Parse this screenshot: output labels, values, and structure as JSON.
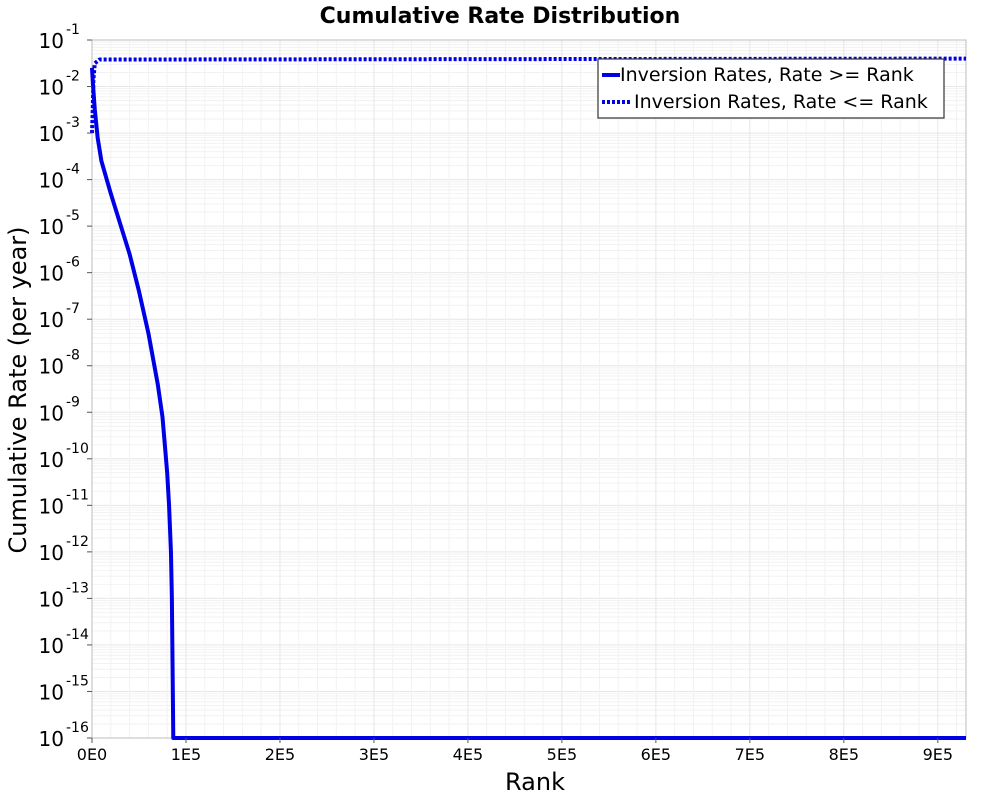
{
  "chart_data": {
    "type": "line",
    "title": "Cumulative Rate Distribution",
    "xlabel": "Rank",
    "ylabel": "Cumulative Rate (per year)",
    "xlim": [
      0,
      930000
    ],
    "ylim_log10": [
      -16,
      -1
    ],
    "y_scale": "log",
    "grid": true,
    "legend_position": "top-right",
    "x_ticks": [
      {
        "value": 0,
        "label": "0E0"
      },
      {
        "value": 100000,
        "label": "1E5"
      },
      {
        "value": 200000,
        "label": "2E5"
      },
      {
        "value": 300000,
        "label": "3E5"
      },
      {
        "value": 400000,
        "label": "4E5"
      },
      {
        "value": 500000,
        "label": "5E5"
      },
      {
        "value": 600000,
        "label": "6E5"
      },
      {
        "value": 700000,
        "label": "7E5"
      },
      {
        "value": 800000,
        "label": "8E5"
      },
      {
        "value": 900000,
        "label": "9E5"
      }
    ],
    "y_ticks": [
      {
        "exp": -1,
        "base": "10",
        "power": "-1"
      },
      {
        "exp": -2,
        "base": "10",
        "power": "-2"
      },
      {
        "exp": -3,
        "base": "10",
        "power": "-3"
      },
      {
        "exp": -4,
        "base": "10",
        "power": "-4"
      },
      {
        "exp": -5,
        "base": "10",
        "power": "-5"
      },
      {
        "exp": -6,
        "base": "10",
        "power": "-6"
      },
      {
        "exp": -7,
        "base": "10",
        "power": "-7"
      },
      {
        "exp": -8,
        "base": "10",
        "power": "-8"
      },
      {
        "exp": -9,
        "base": "10",
        "power": "-9"
      },
      {
        "exp": -10,
        "base": "10",
        "power": "-10"
      },
      {
        "exp": -11,
        "base": "10",
        "power": "-11"
      },
      {
        "exp": -12,
        "base": "10",
        "power": "-12"
      },
      {
        "exp": -13,
        "base": "10",
        "power": "-13"
      },
      {
        "exp": -14,
        "base": "10",
        "power": "-14"
      },
      {
        "exp": -15,
        "base": "10",
        "power": "-15"
      },
      {
        "exp": -16,
        "base": "10",
        "power": "-16"
      }
    ],
    "series": [
      {
        "name": "Inversion Rates, Rate >= Rank",
        "color": "#0000e6",
        "style": "solid",
        "points_log10": [
          [
            0,
            -1.6
          ],
          [
            1000,
            -1.95
          ],
          [
            3000,
            -2.5
          ],
          [
            6000,
            -3.1
          ],
          [
            10000,
            -3.6
          ],
          [
            15000,
            -3.95
          ],
          [
            20000,
            -4.3
          ],
          [
            30000,
            -4.95
          ],
          [
            40000,
            -5.6
          ],
          [
            50000,
            -6.4
          ],
          [
            60000,
            -7.3
          ],
          [
            70000,
            -8.4
          ],
          [
            75000,
            -9.1
          ],
          [
            80000,
            -10.3
          ],
          [
            82000,
            -11.0
          ],
          [
            84000,
            -12.0
          ],
          [
            85000,
            -13.0
          ],
          [
            86000,
            -15.0
          ],
          [
            86500,
            -16.0
          ],
          [
            930000,
            -16.0
          ]
        ]
      },
      {
        "name": "Inversion Rates, Rate <= Rank",
        "color": "#0000e6",
        "style": "dotted",
        "points_log10": [
          [
            0,
            -3.0
          ],
          [
            800,
            -2.5
          ],
          [
            1500,
            -1.85
          ],
          [
            3000,
            -1.5
          ],
          [
            8000,
            -1.42
          ],
          [
            930000,
            -1.4
          ]
        ]
      }
    ]
  }
}
